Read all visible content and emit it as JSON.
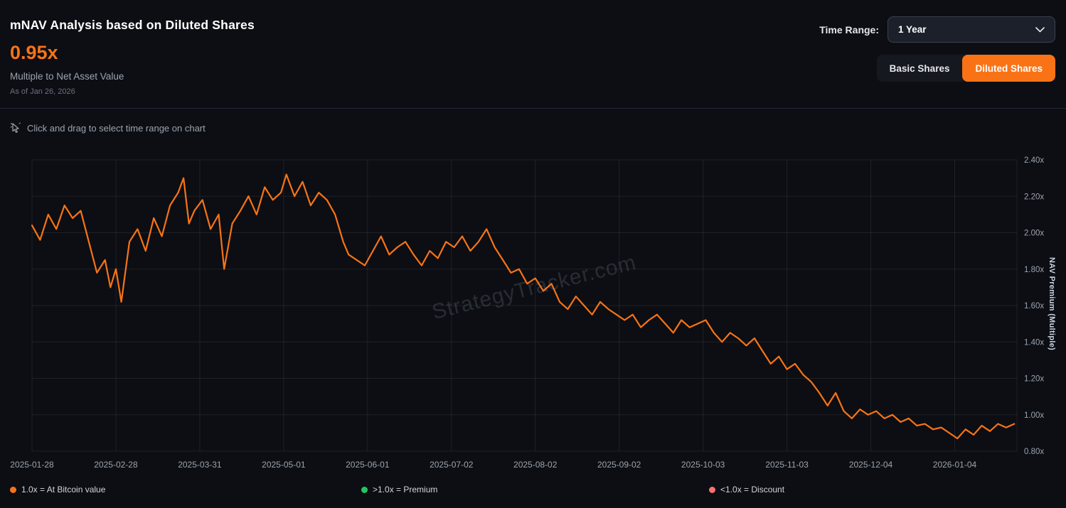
{
  "header": {
    "title": "mNAV Analysis based on Diluted Shares",
    "metric_value": "0.95x",
    "metric_label": "Multiple to Net Asset Value",
    "as_of": "As of Jan 26, 2026",
    "time_range_label": "Time Range:",
    "time_range_value": "1 Year",
    "share_buttons": {
      "basic": "Basic Shares",
      "diluted": "Diluted Shares"
    }
  },
  "hint": "Click and drag to select time range on chart",
  "watermark": "StrategyTracker.com",
  "colors": {
    "accent_orange": "#f97316",
    "premium_green": "#22c55e",
    "discount_pink": "#f87171",
    "background": "#0c0e13",
    "grid": "rgba(255,255,255,0.08)"
  },
  "legend": [
    {
      "color": "#f97316",
      "label": "1.0x = At Bitcoin value"
    },
    {
      "color": "#22c55e",
      "label": ">1.0x = Premium"
    },
    {
      "color": "#f87171",
      "label": "<1.0x = Discount"
    }
  ],
  "chart_data": {
    "type": "line",
    "title": "mNAV Analysis based on Diluted Shares",
    "xlabel": "",
    "ylabel": "NAV Premium (Multiple)",
    "ylim": [
      0.8,
      2.4
    ],
    "grid": true,
    "series_name": "NAV Premium (Multiple)",
    "series_color": "#f97316",
    "x_ticks": [
      "2025-01-28",
      "2025-02-28",
      "2025-03-31",
      "2025-05-01",
      "2025-06-01",
      "2025-07-02",
      "2025-08-02",
      "2025-09-02",
      "2025-10-03",
      "2025-11-03",
      "2025-12-04",
      "2026-01-04"
    ],
    "x_tick_days": [
      0,
      31,
      62,
      93,
      124,
      155,
      186,
      217,
      248,
      279,
      310,
      341
    ],
    "y_ticks": [
      "2.40x",
      "2.20x",
      "2.00x",
      "1.80x",
      "1.60x",
      "1.40x",
      "1.20x",
      "1.00x",
      "0.80x"
    ],
    "x_range_days": 364,
    "x_days": [
      0,
      3,
      6,
      9,
      12,
      15,
      18,
      21,
      24,
      27,
      29,
      31,
      33,
      36,
      39,
      42,
      45,
      48,
      51,
      54,
      56,
      58,
      60,
      63,
      66,
      69,
      71,
      74,
      77,
      80,
      83,
      86,
      89,
      92,
      94,
      97,
      100,
      103,
      106,
      109,
      112,
      115,
      117,
      120,
      123,
      126,
      129,
      132,
      135,
      138,
      141,
      144,
      147,
      150,
      153,
      156,
      159,
      162,
      165,
      168,
      171,
      174,
      177,
      180,
      183,
      186,
      189,
      192,
      195,
      198,
      201,
      204,
      207,
      210,
      213,
      216,
      219,
      222,
      225,
      228,
      231,
      234,
      237,
      240,
      243,
      246,
      249,
      252,
      255,
      258,
      261,
      264,
      267,
      270,
      273,
      276,
      279,
      282,
      285,
      288,
      291,
      294,
      297,
      300,
      303,
      306,
      309,
      312,
      315,
      318,
      321,
      324,
      327,
      330,
      333,
      336,
      339,
      342,
      345,
      348,
      351,
      354,
      357,
      360,
      363
    ],
    "values": [
      2.04,
      1.96,
      2.1,
      2.02,
      2.15,
      2.08,
      2.12,
      1.95,
      1.78,
      1.85,
      1.7,
      1.8,
      1.62,
      1.95,
      2.02,
      1.9,
      2.08,
      1.98,
      2.15,
      2.22,
      2.3,
      2.05,
      2.12,
      2.18,
      2.02,
      2.1,
      1.8,
      2.05,
      2.12,
      2.2,
      2.1,
      2.25,
      2.18,
      2.22,
      2.32,
      2.2,
      2.28,
      2.15,
      2.22,
      2.18,
      2.1,
      1.95,
      1.88,
      1.85,
      1.82,
      1.9,
      1.98,
      1.88,
      1.92,
      1.95,
      1.88,
      1.82,
      1.9,
      1.86,
      1.95,
      1.92,
      1.98,
      1.9,
      1.95,
      2.02,
      1.92,
      1.85,
      1.78,
      1.8,
      1.72,
      1.75,
      1.68,
      1.72,
      1.62,
      1.58,
      1.65,
      1.6,
      1.55,
      1.62,
      1.58,
      1.55,
      1.52,
      1.55,
      1.48,
      1.52,
      1.55,
      1.5,
      1.45,
      1.52,
      1.48,
      1.5,
      1.52,
      1.45,
      1.4,
      1.45,
      1.42,
      1.38,
      1.42,
      1.35,
      1.28,
      1.32,
      1.25,
      1.28,
      1.22,
      1.18,
      1.12,
      1.05,
      1.12,
      1.02,
      0.98,
      1.03,
      1.0,
      1.02,
      0.98,
      1.0,
      0.96,
      0.98,
      0.94,
      0.95,
      0.92,
      0.93,
      0.9,
      0.87,
      0.92,
      0.89,
      0.94,
      0.91,
      0.95,
      0.93,
      0.95
    ]
  }
}
